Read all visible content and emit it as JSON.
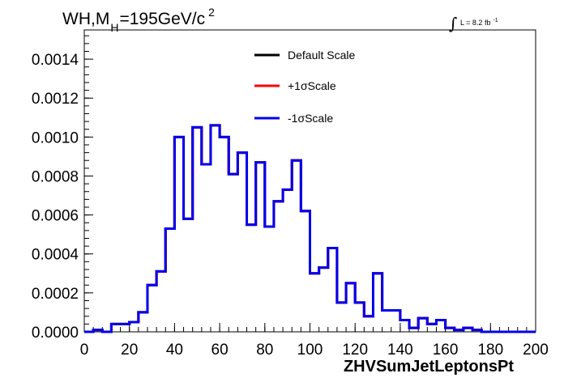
{
  "chart_data": {
    "type": "line",
    "style": "step-histogram",
    "title": {
      "prefix": "WH,M",
      "subscript": "H",
      "value": "=195GeV/c",
      "superscript": "2"
    },
    "lumi": {
      "symbol": "∫",
      "text": "L = 8.2 fb",
      "superscript": "-1"
    },
    "xlabel": "ZHVSumJetLeptonsPt",
    "ylabel": "",
    "xlim": [
      0,
      200
    ],
    "ylim": [
      0,
      0.00155
    ],
    "x_ticks": [
      0,
      20,
      40,
      60,
      80,
      100,
      120,
      140,
      160,
      180,
      200
    ],
    "x_tick_labels": [
      "0",
      "20",
      "40",
      "60",
      "80",
      "100",
      "120",
      "140",
      "160",
      "180",
      "200"
    ],
    "y_ticks": [
      0,
      0.0002,
      0.0004,
      0.0006,
      0.0008,
      0.001,
      0.0012,
      0.0014
    ],
    "y_tick_labels": [
      "0.0000",
      "0.0002",
      "0.0004",
      "0.0006",
      "0.0008",
      "0.0010",
      "0.0012",
      "0.0014"
    ],
    "bin_width": 4,
    "bin_edges_start": 0,
    "legend_position": "top-center",
    "series": [
      {
        "name": "Default Scale",
        "color": "#000000",
        "values": [
          0.0,
          1e-05,
          0.0,
          4e-05,
          4e-05,
          5e-05,
          0.0001,
          0.00024,
          0.00031,
          0.00053,
          0.001,
          0.00058,
          0.00105,
          0.00086,
          0.00106,
          0.001,
          0.00081,
          0.00092,
          0.00055,
          0.00087,
          0.00054,
          0.00067,
          0.00073,
          0.00088,
          0.00062,
          0.0003,
          0.00033,
          0.00043,
          0.00015,
          0.00025,
          0.00015,
          8e-05,
          0.0003,
          0.00011,
          0.00011,
          6e-05,
          2e-05,
          7e-05,
          4e-05,
          6e-05,
          2e-05,
          1e-05,
          2e-05,
          1e-05,
          0.0,
          0.0,
          0.0,
          0.0,
          0.0,
          0.0
        ]
      },
      {
        "name": "+1σScale",
        "color": "#ff0000",
        "values": [
          0.0,
          1e-05,
          0.0,
          4e-05,
          4e-05,
          5e-05,
          0.0001,
          0.00024,
          0.00031,
          0.00053,
          0.001,
          0.00058,
          0.00105,
          0.00086,
          0.00106,
          0.001,
          0.00081,
          0.00092,
          0.00055,
          0.00087,
          0.00054,
          0.00067,
          0.00073,
          0.00088,
          0.00062,
          0.0003,
          0.00033,
          0.00043,
          0.00015,
          0.00025,
          0.00015,
          8e-05,
          0.0003,
          0.00011,
          0.00011,
          6e-05,
          2e-05,
          7e-05,
          4e-05,
          6e-05,
          2e-05,
          1e-05,
          2e-05,
          1e-05,
          0.0,
          0.0,
          0.0,
          0.0,
          0.0,
          0.0
        ]
      },
      {
        "name": "-1σScale",
        "color": "#0000ee",
        "values": [
          0.0,
          1e-05,
          0.0,
          4e-05,
          4e-05,
          5e-05,
          0.0001,
          0.00024,
          0.00031,
          0.00053,
          0.001,
          0.00058,
          0.00105,
          0.00086,
          0.00106,
          0.001,
          0.00081,
          0.00092,
          0.00055,
          0.00087,
          0.00054,
          0.00067,
          0.00073,
          0.00088,
          0.00062,
          0.0003,
          0.00033,
          0.00043,
          0.00015,
          0.00025,
          0.00015,
          8e-05,
          0.0003,
          0.00011,
          0.00011,
          6e-05,
          2e-05,
          7e-05,
          4e-05,
          6e-05,
          2e-05,
          1e-05,
          2e-05,
          1e-05,
          0.0,
          0.0,
          0.0,
          0.0,
          0.0,
          0.0
        ]
      }
    ]
  }
}
